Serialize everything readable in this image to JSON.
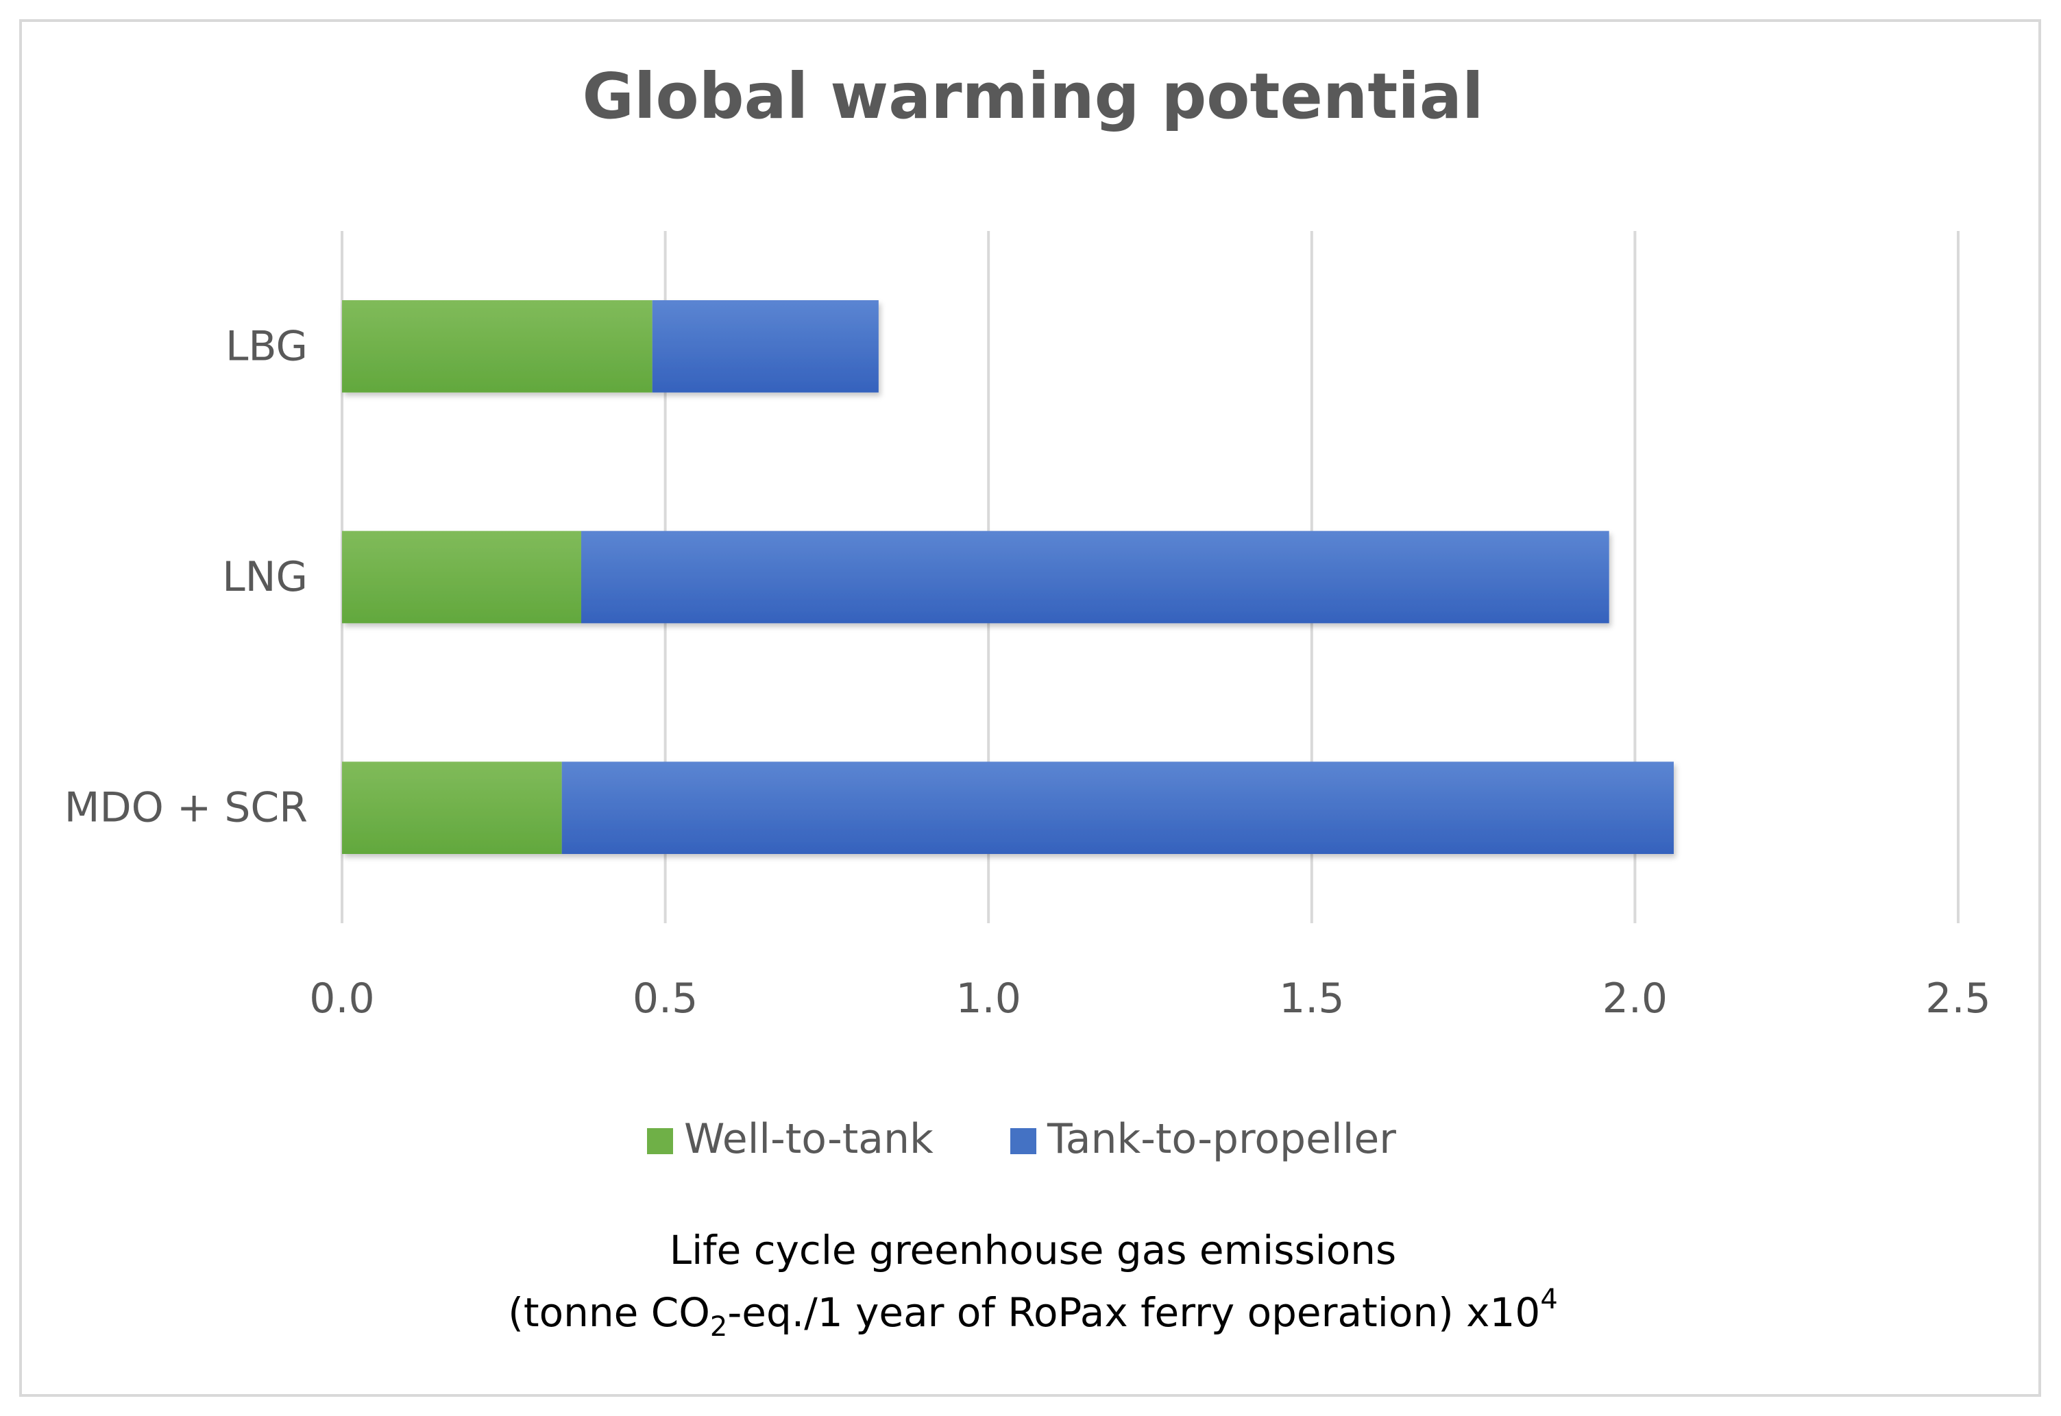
{
  "chart_data": {
    "type": "bar",
    "orientation": "horizontal",
    "stacked": true,
    "title": "Global warming potential",
    "categories": [
      "LBG",
      "LNG",
      "MDO + SCR"
    ],
    "series": [
      {
        "name": "Well-to-tank",
        "values": [
          0.48,
          0.37,
          0.34
        ],
        "color": "#6fb047"
      },
      {
        "name": "Tank-to-propeller",
        "values": [
          0.35,
          1.59,
          1.72
        ],
        "color": "#4472c4"
      }
    ],
    "xlim": [
      0,
      2.5
    ],
    "xticks": [
      "0.0",
      "0.5",
      "1.0",
      "1.5",
      "2.0",
      "2.5"
    ],
    "xlabel": {
      "line1": "Life cycle greenhouse gas emissions",
      "line2_prefix": "(tonne CO",
      "line2_sub": "2",
      "line2_middle": "-eq./1 year of RoPax ferry operation) x10",
      "line2_sup": "4"
    },
    "ylabel": "",
    "grid": "vertical",
    "legend_position": "bottom-center"
  },
  "colors": {
    "grid": "#d9d9d9",
    "frame": "#d9d9d9",
    "text": "#595959"
  }
}
